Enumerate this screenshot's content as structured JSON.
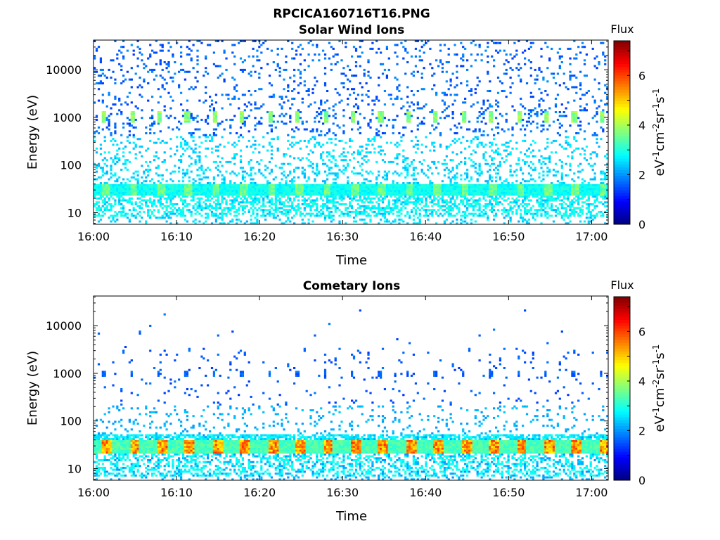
{
  "figure": {
    "title": "RPCICA160716T16.PNG"
  },
  "chart_data": [
    {
      "type": "heatmap",
      "title": "Solar Wind Ions",
      "xlabel": "Time",
      "ylabel": "Energy (eV)",
      "x_ticks": [
        "16:00",
        "16:10",
        "16:20",
        "16:30",
        "16:40",
        "16:50",
        "17:00"
      ],
      "y_ticks": [
        "10",
        "100",
        "1000",
        "10000"
      ],
      "y_scale": "log",
      "x_range": [
        "16:00",
        "17:02"
      ],
      "y_range": [
        5.7,
        42000
      ],
      "colorbar": {
        "title": "Flux",
        "label": "eV-1cm-2sr-1s-1",
        "ticks": [
          "0",
          "2",
          "4",
          "6"
        ],
        "range": [
          0,
          7.4
        ],
        "colormap": "jet"
      },
      "scan_period_min": 3.33,
      "features": [
        {
          "name": "solar wind beam",
          "energy_eV": 1000,
          "flux_level": 3.8,
          "occurs": "periodic, every scan"
        },
        {
          "name": "low-energy band",
          "energy_eV": [
            18,
            40
          ],
          "flux_level": 3.4,
          "occurs": "periodic, every scan"
        },
        {
          "name": "background counts",
          "energy_eV": [
            6,
            42000
          ],
          "flux_level": 1.5,
          "occurs": "scattered"
        }
      ]
    },
    {
      "type": "heatmap",
      "title": "Cometary Ions",
      "xlabel": "Time",
      "ylabel": "Energy (eV)",
      "x_ticks": [
        "16:00",
        "16:10",
        "16:20",
        "16:30",
        "16:40",
        "16:50",
        "17:00"
      ],
      "y_ticks": [
        "10",
        "100",
        "1000",
        "10000"
      ],
      "y_scale": "log",
      "x_range": [
        "16:00",
        "17:02"
      ],
      "y_range": [
        5.7,
        42000
      ],
      "colorbar": {
        "title": "Flux",
        "label": "eV-1cm-2sr-1s-1",
        "ticks": [
          "0",
          "2",
          "4",
          "6"
        ],
        "range": [
          0,
          7.4
        ],
        "colormap": "jet"
      },
      "scan_period_min": 3.33,
      "features": [
        {
          "name": "cometary ion band",
          "energy_eV": [
            18,
            40
          ],
          "flux_level": 5.8,
          "occurs": "periodic, every scan"
        },
        {
          "name": "1 keV points",
          "energy_eV": 1000,
          "flux_level": 1.5,
          "occurs": "periodic, every scan"
        },
        {
          "name": "background counts",
          "energy_eV": [
            6,
            42000
          ],
          "flux_level": 1.3,
          "occurs": "sparse"
        }
      ]
    }
  ]
}
